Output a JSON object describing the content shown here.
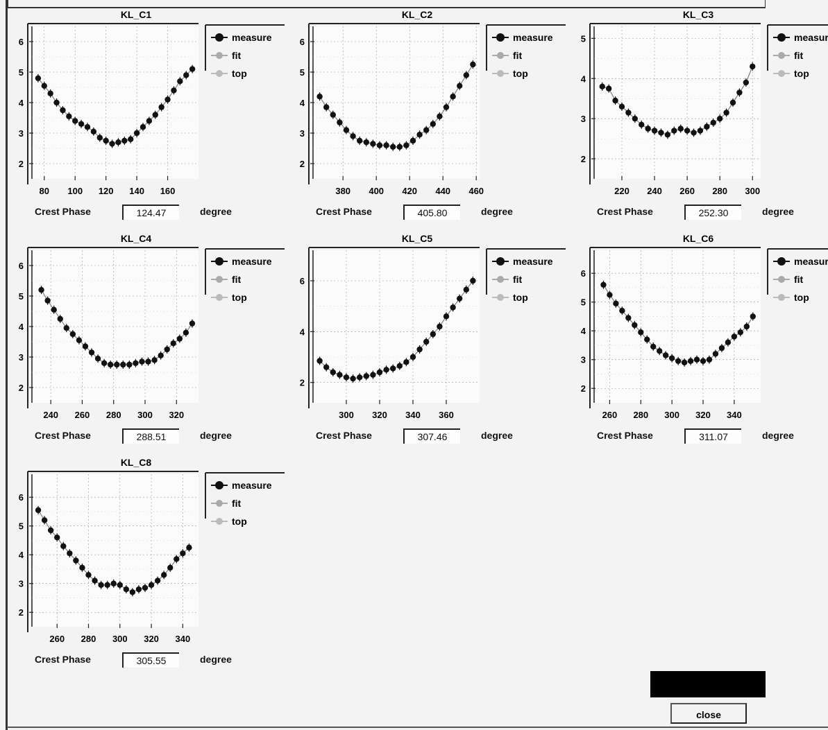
{
  "window": {
    "close_label": "close"
  },
  "chart_data": [
    {
      "type": "scatter",
      "title": "KL_C1",
      "xlim": [
        72,
        180
      ],
      "ylim": [
        1.5,
        6.5
      ],
      "xticks": [
        80,
        100,
        120,
        140,
        160
      ],
      "yticks": [
        2,
        3,
        4,
        5,
        6
      ],
      "grid": true,
      "legend": [
        "measure",
        "fit",
        "top"
      ],
      "legend_position": "right",
      "x": [
        76,
        80,
        84,
        88,
        92,
        96,
        100,
        104,
        108,
        112,
        116,
        120,
        124,
        128,
        132,
        136,
        140,
        144,
        148,
        152,
        156,
        160,
        164,
        168,
        172,
        176
      ],
      "y": [
        4.8,
        4.55,
        4.3,
        4.0,
        3.75,
        3.55,
        3.4,
        3.3,
        3.2,
        3.05,
        2.85,
        2.75,
        2.65,
        2.7,
        2.75,
        2.8,
        3.0,
        3.2,
        3.4,
        3.6,
        3.85,
        4.1,
        4.4,
        4.7,
        4.9,
        5.1
      ],
      "phase_label": "Crest Phase",
      "phase_value": "124.47",
      "phase_unit": "degree"
    },
    {
      "type": "scatter",
      "title": "KL_C2",
      "xlim": [
        362,
        462
      ],
      "ylim": [
        1.5,
        6.5
      ],
      "xticks": [
        380,
        400,
        420,
        440,
        460
      ],
      "yticks": [
        2,
        3,
        4,
        5,
        6
      ],
      "grid": true,
      "legend": [
        "measure",
        "fit",
        "top"
      ],
      "legend_position": "right",
      "x": [
        366,
        370,
        374,
        378,
        382,
        386,
        390,
        394,
        398,
        402,
        406,
        410,
        414,
        418,
        422,
        426,
        430,
        434,
        438,
        442,
        446,
        450,
        454,
        458
      ],
      "y": [
        4.2,
        3.85,
        3.6,
        3.35,
        3.1,
        2.9,
        2.75,
        2.7,
        2.65,
        2.6,
        2.6,
        2.55,
        2.55,
        2.6,
        2.75,
        2.95,
        3.1,
        3.3,
        3.55,
        3.85,
        4.2,
        4.55,
        4.9,
        5.25
      ],
      "phase_label": "Crest Phase",
      "phase_value": "405.80",
      "phase_unit": "degree"
    },
    {
      "type": "scatter",
      "title": "KL_C3",
      "xlim": [
        203,
        305
      ],
      "ylim": [
        1.5,
        5.3
      ],
      "xticks": [
        220,
        240,
        260,
        280,
        300
      ],
      "yticks": [
        2,
        3,
        4,
        5
      ],
      "grid": true,
      "legend": [
        "measure",
        "fit",
        "top"
      ],
      "legend_position": "right",
      "x": [
        208,
        212,
        216,
        220,
        224,
        228,
        232,
        236,
        240,
        244,
        248,
        252,
        256,
        260,
        264,
        268,
        272,
        276,
        280,
        284,
        288,
        292,
        296,
        300
      ],
      "y": [
        3.8,
        3.75,
        3.45,
        3.3,
        3.15,
        3.0,
        2.85,
        2.75,
        2.7,
        2.65,
        2.6,
        2.7,
        2.75,
        2.7,
        2.65,
        2.7,
        2.8,
        2.9,
        3.0,
        3.15,
        3.4,
        3.65,
        3.9,
        4.3
      ],
      "phase_label": "Crest Phase",
      "phase_value": "252.30",
      "phase_unit": "degree"
    },
    {
      "type": "scatter",
      "title": "KL_C4",
      "xlim": [
        228,
        334
      ],
      "ylim": [
        1.5,
        6.5
      ],
      "xticks": [
        240,
        260,
        280,
        300,
        320
      ],
      "yticks": [
        2,
        3,
        4,
        5,
        6
      ],
      "grid": true,
      "legend": [
        "measure",
        "fit",
        "top"
      ],
      "legend_position": "right",
      "x": [
        234,
        238,
        242,
        246,
        250,
        254,
        258,
        262,
        266,
        270,
        274,
        278,
        282,
        286,
        290,
        294,
        298,
        302,
        306,
        310,
        314,
        318,
        322,
        326,
        330
      ],
      "y": [
        5.2,
        4.85,
        4.55,
        4.25,
        3.95,
        3.75,
        3.55,
        3.35,
        3.15,
        2.95,
        2.8,
        2.75,
        2.75,
        2.75,
        2.75,
        2.8,
        2.85,
        2.85,
        2.9,
        3.05,
        3.25,
        3.45,
        3.6,
        3.8,
        4.1
      ],
      "phase_label": "Crest Phase",
      "phase_value": "288.51",
      "phase_unit": "degree"
    },
    {
      "type": "scatter",
      "title": "KL_C5",
      "xlim": [
        280,
        380
      ],
      "ylim": [
        1.2,
        7.2
      ],
      "xticks": [
        300,
        320,
        340,
        360
      ],
      "yticks": [
        2,
        4,
        6
      ],
      "grid": true,
      "legend": [
        "measure",
        "fit",
        "top"
      ],
      "legend_position": "right",
      "x": [
        284,
        288,
        292,
        296,
        300,
        304,
        308,
        312,
        316,
        320,
        324,
        328,
        332,
        336,
        340,
        344,
        348,
        352,
        356,
        360,
        364,
        368,
        372,
        376
      ],
      "y": [
        2.85,
        2.6,
        2.4,
        2.3,
        2.2,
        2.15,
        2.2,
        2.25,
        2.3,
        2.4,
        2.5,
        2.55,
        2.65,
        2.8,
        3.0,
        3.3,
        3.6,
        3.9,
        4.2,
        4.6,
        4.95,
        5.3,
        5.65,
        6.0
      ],
      "phase_label": "Crest Phase",
      "phase_value": "307.46",
      "phase_unit": "degree"
    },
    {
      "type": "scatter",
      "title": "KL_C6",
      "xlim": [
        250,
        357
      ],
      "ylim": [
        1.5,
        6.8
      ],
      "xticks": [
        260,
        280,
        300,
        320,
        340
      ],
      "yticks": [
        2,
        3,
        4,
        5,
        6
      ],
      "grid": true,
      "legend": [
        "measure",
        "fit",
        "top"
      ],
      "legend_position": "right",
      "x": [
        256,
        260,
        264,
        268,
        272,
        276,
        280,
        284,
        288,
        292,
        296,
        300,
        304,
        308,
        312,
        316,
        320,
        324,
        328,
        332,
        336,
        340,
        344,
        348,
        352
      ],
      "y": [
        5.6,
        5.25,
        4.95,
        4.7,
        4.45,
        4.2,
        3.95,
        3.7,
        3.45,
        3.3,
        3.15,
        3.05,
        2.95,
        2.9,
        2.95,
        3.0,
        2.95,
        3.0,
        3.2,
        3.4,
        3.6,
        3.8,
        3.95,
        4.15,
        4.5
      ],
      "phase_label": "Crest Phase",
      "phase_value": "311.07",
      "phase_unit": "degree"
    },
    {
      "type": "scatter",
      "title": "KL_C8",
      "xlim": [
        244,
        350
      ],
      "ylim": [
        1.5,
        6.8
      ],
      "xticks": [
        260,
        280,
        300,
        320,
        340
      ],
      "yticks": [
        2,
        3,
        4,
        5,
        6
      ],
      "grid": true,
      "legend": [
        "measure",
        "fit",
        "top"
      ],
      "legend_position": "right",
      "x": [
        248,
        252,
        256,
        260,
        264,
        268,
        272,
        276,
        280,
        284,
        288,
        292,
        296,
        300,
        304,
        308,
        312,
        316,
        320,
        324,
        328,
        332,
        336,
        340,
        344
      ],
      "y": [
        5.55,
        5.2,
        4.85,
        4.6,
        4.3,
        4.05,
        3.8,
        3.55,
        3.3,
        3.1,
        2.95,
        2.95,
        3.0,
        2.95,
        2.8,
        2.7,
        2.8,
        2.85,
        2.95,
        3.1,
        3.3,
        3.55,
        3.85,
        4.05,
        4.25
      ],
      "phase_label": "Crest Phase",
      "phase_value": "305.55",
      "phase_unit": "degree"
    }
  ]
}
